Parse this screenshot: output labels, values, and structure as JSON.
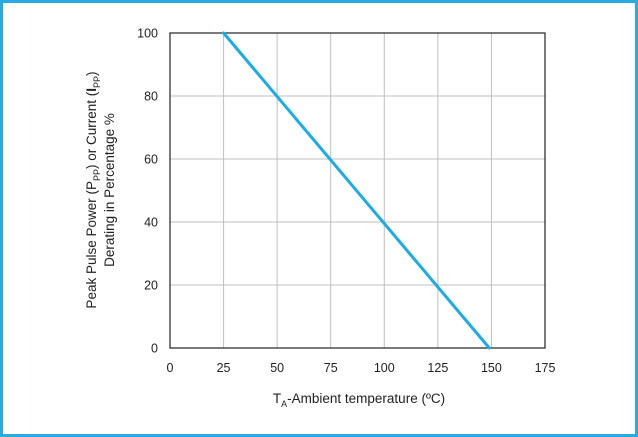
{
  "chart_data": {
    "type": "line",
    "title": "",
    "xlabel": "TA-Ambient temperature (ºC)",
    "xlabel_parts": {
      "main": "T",
      "subscript": "A",
      "rest": "-Ambient temperature (ºC)"
    },
    "ylabel": "Peak Pulse Power (PPP) or Current (IPP) Derating in Percentage %",
    "ylabel_line1_parts": {
      "a": "Peak Pulse Power (P",
      "a_sub": "PP",
      "b": ") or Current (",
      "bold": "I",
      "bold_sub": "PP",
      "c": ")"
    },
    "ylabel_line2": "Derating in Percentage %",
    "xlim": [
      0,
      175
    ],
    "ylim": [
      0,
      100
    ],
    "xticks": [
      0,
      25,
      50,
      75,
      100,
      125,
      150,
      175
    ],
    "yticks": [
      0,
      20,
      40,
      60,
      80,
      100
    ],
    "x_tick_labels": [
      "0",
      "25",
      "50",
      "75",
      "100",
      "125",
      "150",
      "175"
    ],
    "y_tick_labels": [
      "0",
      "20",
      "40",
      "60",
      "80",
      "100"
    ],
    "grid": true,
    "series": [
      {
        "x": [
          25,
          149
        ],
        "y": [
          100,
          0
        ],
        "color": "#1aace6"
      }
    ]
  },
  "colors": {
    "frame_border": "#29abe2",
    "grid": "#bfbfbf",
    "axis": "#222222",
    "line": "#1aace6"
  }
}
